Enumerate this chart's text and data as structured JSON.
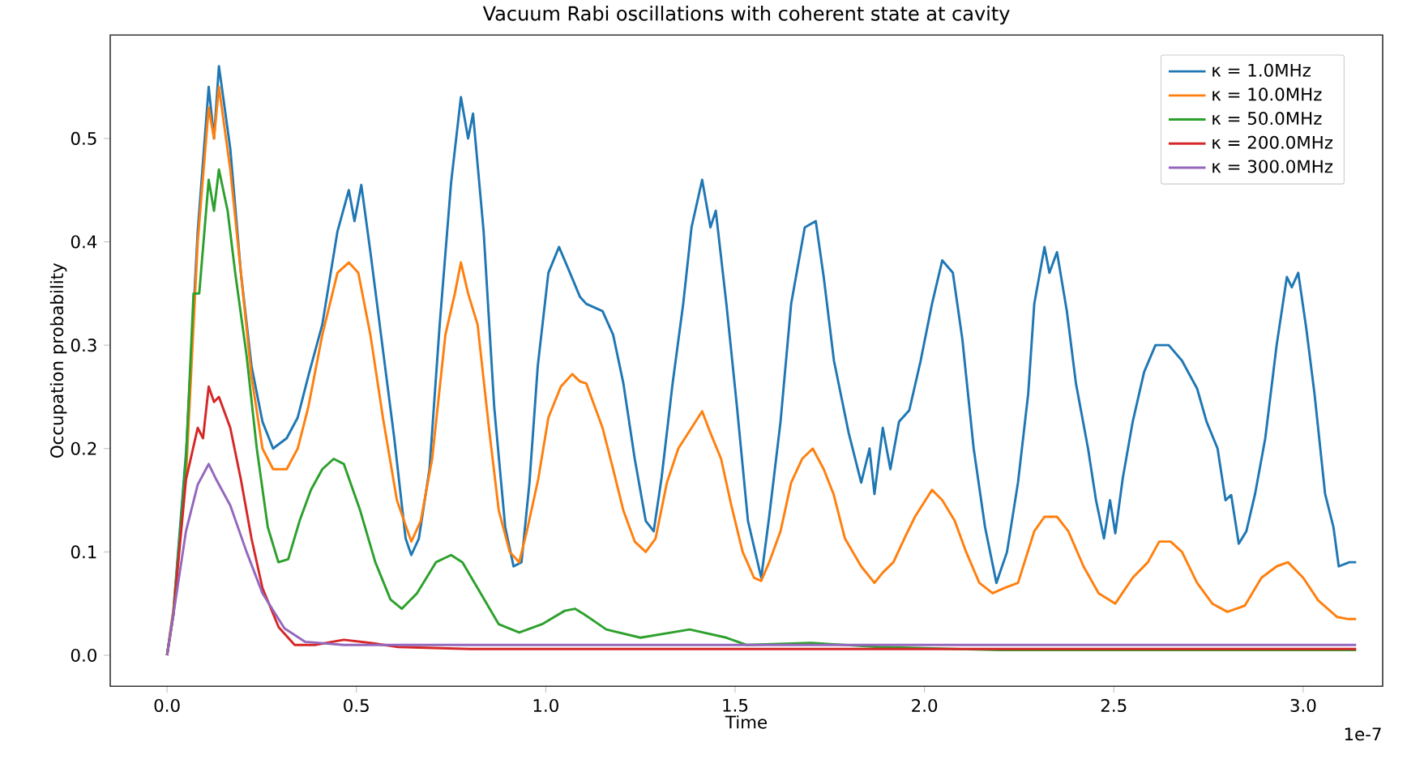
{
  "chart_data": {
    "type": "line",
    "title": "Vacuum Rabi oscillations with coherent state at cavity",
    "xlabel": "Time",
    "ylabel": "Occupation probability",
    "annotations": [
      "1e-7"
    ],
    "xlim": [
      -0.15,
      3.21
    ],
    "ylim": [
      -0.03,
      0.6
    ],
    "xticks": [
      {
        "value": 0,
        "label": "0.0"
      },
      0.5,
      {
        "value": 1,
        "label": "1.0"
      },
      1.5,
      {
        "value": 2,
        "label": "2.0"
      },
      2.5,
      {
        "value": 3,
        "label": "3.0"
      }
    ],
    "yticks": [
      {
        "value": 0,
        "label": "0.0"
      },
      0.1,
      0.2,
      0.3,
      0.4,
      0.5
    ],
    "grid": false,
    "legend": "top right",
    "marker": "none",
    "line_style": "solid",
    "series": [
      {
        "name": "κ = 1.0MHz",
        "color": "#1f77b4",
        "x": [
          0,
          0.017,
          0.051,
          0.081,
          0.11,
          0.124,
          0.137,
          0.167,
          0.195,
          0.223,
          0.252,
          0.28,
          0.316,
          0.345,
          0.373,
          0.41,
          0.45,
          0.48,
          0.495,
          0.513,
          0.537,
          0.565,
          0.6,
          0.63,
          0.645,
          0.665,
          0.693,
          0.72,
          0.75,
          0.776,
          0.795,
          0.808,
          0.836,
          0.864,
          0.893,
          0.915,
          0.936,
          0.957,
          0.979,
          1.007,
          1.035,
          1.064,
          1.09,
          1.107,
          1.15,
          1.178,
          1.205,
          1.235,
          1.264,
          1.285,
          1.306,
          1.335,
          1.363,
          1.385,
          1.413,
          1.435,
          1.449,
          1.477,
          1.505,
          1.534,
          1.569,
          1.59,
          1.62,
          1.648,
          1.684,
          1.713,
          1.734,
          1.761,
          1.8,
          1.833,
          1.855,
          1.868,
          1.89,
          1.91,
          1.933,
          1.96,
          1.99,
          2.02,
          2.047,
          2.075,
          2.1,
          2.13,
          2.16,
          2.19,
          2.218,
          2.247,
          2.274,
          2.29,
          2.317,
          2.33,
          2.35,
          2.376,
          2.4,
          2.432,
          2.453,
          2.474,
          2.49,
          2.504,
          2.524,
          2.55,
          2.58,
          2.61,
          2.645,
          2.68,
          2.72,
          2.745,
          2.774,
          2.795,
          2.81,
          2.83,
          2.85,
          2.873,
          2.9,
          2.93,
          2.957,
          2.97,
          2.987,
          3.008,
          3.03,
          3.058,
          3.08,
          3.094,
          3.122,
          3.14
        ],
        "values": [
          0,
          0.044,
          0.2,
          0.41,
          0.55,
          0.5,
          0.57,
          0.49,
          0.37,
          0.28,
          0.226,
          0.2,
          0.21,
          0.23,
          0.27,
          0.32,
          0.41,
          0.45,
          0.42,
          0.455,
          0.39,
          0.31,
          0.21,
          0.113,
          0.097,
          0.113,
          0.18,
          0.32,
          0.457,
          0.54,
          0.5,
          0.524,
          0.41,
          0.24,
          0.124,
          0.086,
          0.09,
          0.167,
          0.28,
          0.37,
          0.395,
          0.37,
          0.347,
          0.34,
          0.333,
          0.31,
          0.263,
          0.19,
          0.13,
          0.12,
          0.172,
          0.263,
          0.34,
          0.414,
          0.46,
          0.414,
          0.43,
          0.34,
          0.24,
          0.13,
          0.075,
          0.134,
          0.226,
          0.34,
          0.414,
          0.42,
          0.366,
          0.285,
          0.215,
          0.167,
          0.2,
          0.156,
          0.22,
          0.18,
          0.226,
          0.237,
          0.285,
          0.34,
          0.382,
          0.37,
          0.306,
          0.2,
          0.124,
          0.07,
          0.1,
          0.167,
          0.253,
          0.34,
          0.395,
          0.37,
          0.39,
          0.333,
          0.263,
          0.2,
          0.15,
          0.113,
          0.15,
          0.118,
          0.172,
          0.226,
          0.274,
          0.3,
          0.3,
          0.285,
          0.258,
          0.226,
          0.2,
          0.15,
          0.155,
          0.108,
          0.12,
          0.156,
          0.21,
          0.3,
          0.366,
          0.356,
          0.37,
          0.317,
          0.253,
          0.156,
          0.124,
          0.086,
          0.09,
          0.09
        ]
      },
      {
        "name": "κ = 10.0MHz",
        "color": "#ff7f0e",
        "x": [
          0,
          0.017,
          0.051,
          0.081,
          0.11,
          0.124,
          0.137,
          0.167,
          0.195,
          0.223,
          0.252,
          0.28,
          0.316,
          0.345,
          0.373,
          0.41,
          0.45,
          0.48,
          0.505,
          0.537,
          0.57,
          0.607,
          0.645,
          0.67,
          0.7,
          0.735,
          0.76,
          0.776,
          0.795,
          0.82,
          0.85,
          0.876,
          0.905,
          0.93,
          0.95,
          0.98,
          1.007,
          1.04,
          1.07,
          1.09,
          1.107,
          1.15,
          1.178,
          1.205,
          1.235,
          1.264,
          1.29,
          1.32,
          1.35,
          1.385,
          1.413,
          1.435,
          1.463,
          1.49,
          1.52,
          1.55,
          1.569,
          1.59,
          1.62,
          1.648,
          1.677,
          1.705,
          1.734,
          1.76,
          1.79,
          1.833,
          1.868,
          1.89,
          1.918,
          1.947,
          1.975,
          2.02,
          2.047,
          2.08,
          2.11,
          2.145,
          2.18,
          2.21,
          2.247,
          2.29,
          2.317,
          2.35,
          2.38,
          2.42,
          2.46,
          2.504,
          2.55,
          2.59,
          2.62,
          2.65,
          2.68,
          2.72,
          2.76,
          2.8,
          2.846,
          2.89,
          2.93,
          2.96,
          3.0,
          3.04,
          3.09,
          3.12,
          3.14
        ],
        "values": [
          0,
          0.044,
          0.18,
          0.4,
          0.53,
          0.5,
          0.55,
          0.47,
          0.37,
          0.27,
          0.2,
          0.18,
          0.18,
          0.2,
          0.24,
          0.31,
          0.37,
          0.38,
          0.37,
          0.31,
          0.23,
          0.15,
          0.11,
          0.13,
          0.19,
          0.31,
          0.35,
          0.38,
          0.35,
          0.32,
          0.22,
          0.14,
          0.1,
          0.09,
          0.12,
          0.17,
          0.23,
          0.26,
          0.272,
          0.265,
          0.263,
          0.22,
          0.18,
          0.14,
          0.11,
          0.1,
          0.113,
          0.167,
          0.2,
          0.22,
          0.236,
          0.215,
          0.19,
          0.145,
          0.1,
          0.075,
          0.072,
          0.09,
          0.12,
          0.167,
          0.19,
          0.2,
          0.18,
          0.156,
          0.113,
          0.086,
          0.07,
          0.08,
          0.09,
          0.113,
          0.134,
          0.16,
          0.15,
          0.13,
          0.1,
          0.07,
          0.06,
          0.065,
          0.07,
          0.12,
          0.134,
          0.134,
          0.12,
          0.086,
          0.06,
          0.05,
          0.075,
          0.09,
          0.11,
          0.11,
          0.1,
          0.07,
          0.05,
          0.042,
          0.048,
          0.075,
          0.086,
          0.09,
          0.075,
          0.053,
          0.037,
          0.035,
          0.035
        ]
      },
      {
        "name": "κ = 50.0MHz",
        "color": "#2ca02c",
        "x": [
          0,
          0.017,
          0.05,
          0.07,
          0.085,
          0.11,
          0.124,
          0.137,
          0.16,
          0.18,
          0.21,
          0.237,
          0.266,
          0.294,
          0.32,
          0.35,
          0.38,
          0.41,
          0.44,
          0.467,
          0.51,
          0.55,
          0.59,
          0.62,
          0.66,
          0.71,
          0.75,
          0.78,
          0.82,
          0.876,
          0.93,
          0.99,
          1.05,
          1.077,
          1.1,
          1.16,
          1.25,
          1.38,
          1.477,
          1.53,
          1.7,
          1.88,
          2.2,
          2.6,
          3.14
        ],
        "values": [
          0,
          0.04,
          0.19,
          0.35,
          0.35,
          0.46,
          0.43,
          0.47,
          0.43,
          0.37,
          0.29,
          0.2,
          0.124,
          0.09,
          0.093,
          0.13,
          0.16,
          0.18,
          0.19,
          0.185,
          0.14,
          0.09,
          0.054,
          0.045,
          0.06,
          0.09,
          0.097,
          0.09,
          0.065,
          0.03,
          0.022,
          0.03,
          0.043,
          0.045,
          0.04,
          0.025,
          0.017,
          0.025,
          0.017,
          0.01,
          0.012,
          0.008,
          0.005,
          0.005,
          0.005
        ]
      },
      {
        "name": "κ = 200.0MHz",
        "color": "#d62728",
        "x": [
          0,
          0.017,
          0.05,
          0.081,
          0.095,
          0.11,
          0.124,
          0.137,
          0.167,
          0.195,
          0.223,
          0.252,
          0.295,
          0.337,
          0.39,
          0.467,
          0.537,
          0.61,
          0.8,
          3.14
        ],
        "values": [
          0,
          0.04,
          0.17,
          0.22,
          0.21,
          0.26,
          0.245,
          0.25,
          0.22,
          0.17,
          0.113,
          0.065,
          0.027,
          0.01,
          0.01,
          0.015,
          0.012,
          0.008,
          0.006,
          0.006
        ]
      },
      {
        "name": "κ = 300.0MHz",
        "color": "#9467bd",
        "x": [
          0,
          0.017,
          0.05,
          0.081,
          0.11,
          0.13,
          0.167,
          0.21,
          0.252,
          0.31,
          0.365,
          0.467,
          3.14
        ],
        "values": [
          0,
          0.04,
          0.12,
          0.165,
          0.185,
          0.17,
          0.145,
          0.1,
          0.06,
          0.026,
          0.013,
          0.01,
          0.01
        ]
      }
    ]
  }
}
